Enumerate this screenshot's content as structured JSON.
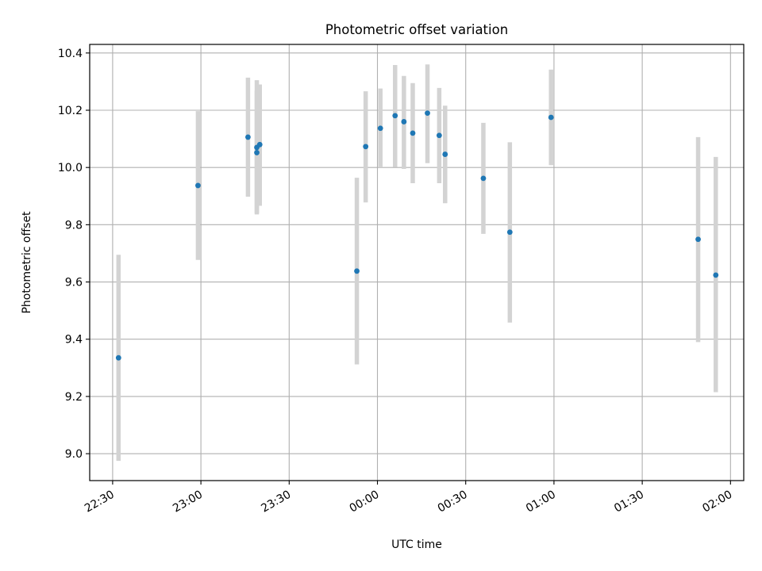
{
  "chart_data": {
    "type": "scatter",
    "title": "Photometric offset variation",
    "xlabel": "UTC time",
    "ylabel": "Photometric offset",
    "x_axis": {
      "kind": "time",
      "unit": "minutes",
      "ticks": [
        {
          "value": 0,
          "label": "22:30"
        },
        {
          "value": 30,
          "label": "23:00"
        },
        {
          "value": 60,
          "label": "23:30"
        },
        {
          "value": 90,
          "label": "00:00"
        },
        {
          "value": 120,
          "label": "00:30"
        },
        {
          "value": 150,
          "label": "01:00"
        },
        {
          "value": 180,
          "label": "01:30"
        },
        {
          "value": 210,
          "label": "02:00"
        }
      ],
      "range": [
        -7.8,
        214.5
      ],
      "tick_label_rotation": "30deg"
    },
    "y_axis": {
      "ticks": [
        9.0,
        9.2,
        9.4,
        9.6,
        9.8,
        10.0,
        10.2,
        10.4
      ],
      "tick_labels": [
        "9.0",
        "9.2",
        "9.4",
        "9.6",
        "9.8",
        "10.0",
        "10.2",
        "10.4"
      ],
      "range": [
        8.906,
        10.43
      ]
    },
    "grid": true,
    "colors": {
      "point": "#1f77b4",
      "errorbar": "#d3d3d3",
      "grid": "#b0b0b0",
      "axes": "#000000"
    },
    "points": [
      {
        "time": "22:32",
        "y": 9.335,
        "lo": 8.975,
        "hi": 9.695
      },
      {
        "time": "22:59",
        "y": 9.937,
        "lo": 9.677,
        "hi": 10.197
      },
      {
        "time": "23:16",
        "y": 10.106,
        "lo": 9.898,
        "hi": 10.314
      },
      {
        "time": "23:19",
        "y": 10.052,
        "lo": 9.836,
        "hi": 10.268
      },
      {
        "time": "23:19",
        "y": 10.07,
        "lo": 9.84,
        "hi": 10.305
      },
      {
        "time": "23:20",
        "y": 10.08,
        "lo": 9.866,
        "hi": 10.29
      },
      {
        "time": "23:53",
        "y": 9.638,
        "lo": 9.312,
        "hi": 9.964
      },
      {
        "time": "23:56",
        "y": 10.073,
        "lo": 9.878,
        "hi": 10.266
      },
      {
        "time": "00:01",
        "y": 10.137,
        "lo": 10.0,
        "hi": 10.276
      },
      {
        "time": "00:06",
        "y": 10.181,
        "lo": 10.002,
        "hi": 10.358
      },
      {
        "time": "00:09",
        "y": 10.16,
        "lo": 9.995,
        "hi": 10.32
      },
      {
        "time": "00:12",
        "y": 10.12,
        "lo": 9.945,
        "hi": 10.295
      },
      {
        "time": "00:17",
        "y": 10.19,
        "lo": 10.015,
        "hi": 10.36
      },
      {
        "time": "00:21",
        "y": 10.112,
        "lo": 9.945,
        "hi": 10.278
      },
      {
        "time": "00:23",
        "y": 10.046,
        "lo": 9.875,
        "hi": 10.216
      },
      {
        "time": "00:36",
        "y": 9.962,
        "lo": 9.768,
        "hi": 10.156
      },
      {
        "time": "00:45",
        "y": 9.774,
        "lo": 9.458,
        "hi": 10.088
      },
      {
        "time": "00:59",
        "y": 10.175,
        "lo": 10.008,
        "hi": 10.342
      },
      {
        "time": "01:49",
        "y": 9.749,
        "lo": 9.39,
        "hi": 10.106
      },
      {
        "time": "01:55",
        "y": 9.624,
        "lo": 9.215,
        "hi": 10.037
      }
    ]
  }
}
